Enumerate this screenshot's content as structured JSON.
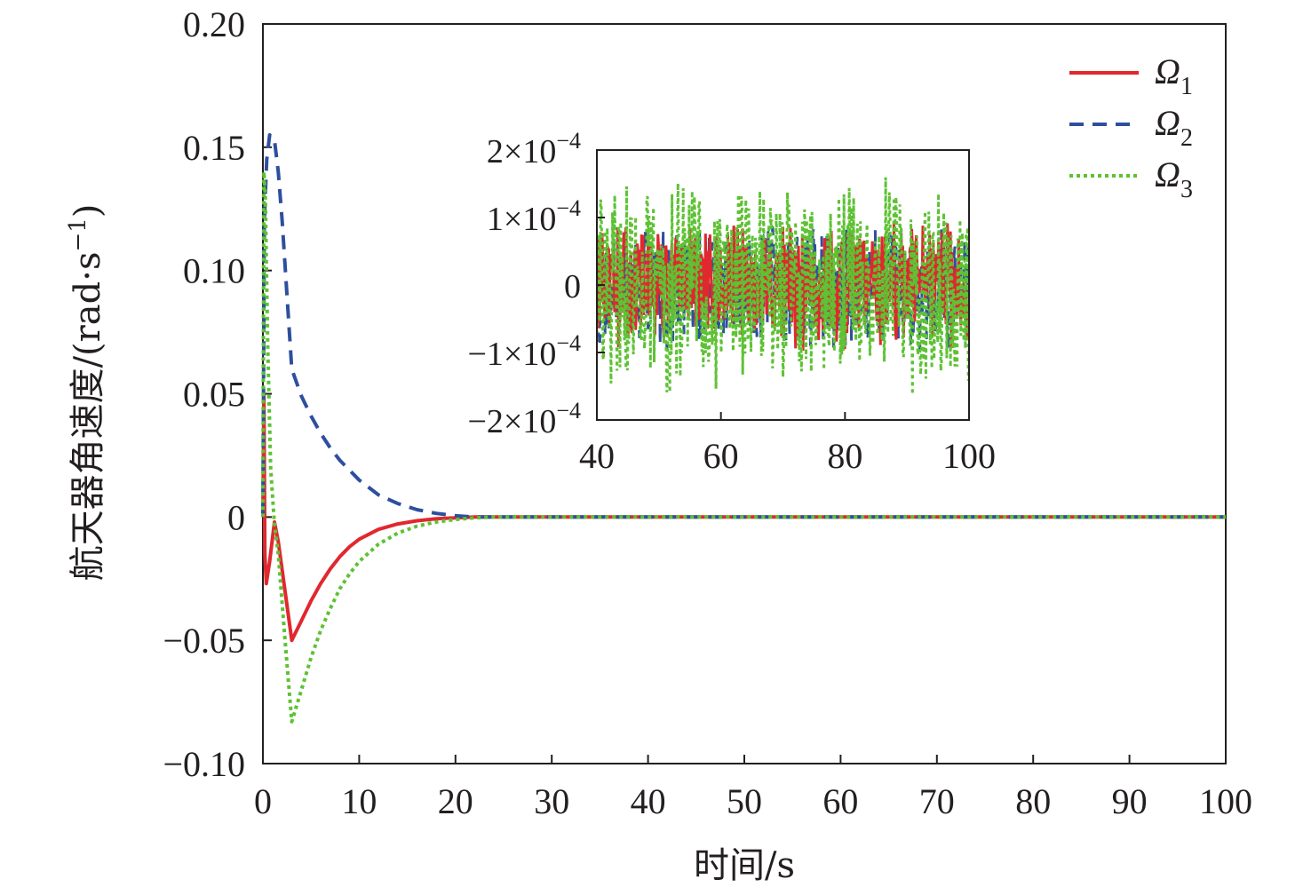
{
  "chart_data": [
    {
      "type": "line",
      "title": "",
      "xlabel": "时间/s",
      "ylabel": "航天器角速度/(rad·s",
      "ylabel_superscript": "−1",
      "ylabel_close": ")",
      "xlim": [
        0,
        100
      ],
      "ylim": [
        -0.1,
        0.2
      ],
      "x_ticks": [
        0,
        10,
        20,
        30,
        40,
        50,
        60,
        70,
        80,
        90,
        100
      ],
      "x_tick_labels": [
        "0",
        "10",
        "20",
        "30",
        "40",
        "50",
        "60",
        "70",
        "80",
        "90",
        "100"
      ],
      "y_ticks": [
        -0.1,
        -0.05,
        0,
        0.05,
        0.1,
        0.15,
        0.2
      ],
      "y_tick_labels": [
        "−0.10",
        "−0.05",
        "0",
        "0.05",
        "0.10",
        "0.15",
        "0.20"
      ],
      "grid": false,
      "legend_position": "top-right",
      "series": [
        {
          "name": "Ω",
          "subscript": "1",
          "color": "#e0282e",
          "dash": "solid",
          "points": [
            [
              0,
              0
            ],
            [
              0.1,
              0.05
            ],
            [
              0.2,
              -0.015
            ],
            [
              0.35,
              -0.027
            ],
            [
              0.7,
              -0.018
            ],
            [
              1.2,
              -0.002
            ],
            [
              1.6,
              -0.01
            ],
            [
              2.3,
              -0.03
            ],
            [
              3.0,
              -0.05
            ],
            [
              4,
              -0.042
            ],
            [
              5,
              -0.034
            ],
            [
              6,
              -0.027
            ],
            [
              7,
              -0.021
            ],
            [
              8,
              -0.016
            ],
            [
              9,
              -0.012
            ],
            [
              10,
              -0.009
            ],
            [
              12,
              -0.005
            ],
            [
              14,
              -0.0028
            ],
            [
              16,
              -0.0015
            ],
            [
              18,
              -0.0007
            ],
            [
              20,
              -0.0003
            ],
            [
              22,
              0
            ],
            [
              100,
              0
            ]
          ]
        },
        {
          "name": "Ω",
          "subscript": "2",
          "color": "#2e4f9e",
          "dash": "dashed",
          "points": [
            [
              0,
              0.0
            ],
            [
              0.15,
              0.12
            ],
            [
              0.4,
              0.145
            ],
            [
              0.7,
              0.155
            ],
            [
              1.2,
              0.153
            ],
            [
              1.6,
              0.14
            ],
            [
              2.0,
              0.12
            ],
            [
              2.5,
              0.09
            ],
            [
              3.0,
              0.06
            ],
            [
              4,
              0.049
            ],
            [
              5,
              0.041
            ],
            [
              6,
              0.034
            ],
            [
              7,
              0.028
            ],
            [
              8,
              0.023
            ],
            [
              9,
              0.019
            ],
            [
              10,
              0.015
            ],
            [
              12,
              0.009
            ],
            [
              14,
              0.0055
            ],
            [
              16,
              0.003
            ],
            [
              18,
              0.0015
            ],
            [
              20,
              0.0005
            ],
            [
              22,
              0
            ],
            [
              100,
              0
            ]
          ]
        },
        {
          "name": "Ω",
          "subscript": "3",
          "color": "#5ec234",
          "dash": "dotted",
          "points": [
            [
              0,
              0.0
            ],
            [
              0.1,
              0.14
            ],
            [
              0.25,
              0.13
            ],
            [
              0.5,
              0.07
            ],
            [
              0.8,
              0.02
            ],
            [
              1.2,
              -0.003
            ],
            [
              1.6,
              -0.015
            ],
            [
              2.2,
              -0.045
            ],
            [
              3.0,
              -0.083
            ],
            [
              4,
              -0.07
            ],
            [
              5,
              -0.057
            ],
            [
              6,
              -0.046
            ],
            [
              7,
              -0.037
            ],
            [
              8,
              -0.029
            ],
            [
              9,
              -0.023
            ],
            [
              10,
              -0.018
            ],
            [
              12,
              -0.011
            ],
            [
              14,
              -0.0065
            ],
            [
              16,
              -0.0037
            ],
            [
              18,
              -0.002
            ],
            [
              20,
              -0.001
            ],
            [
              22,
              -0.0003
            ],
            [
              24,
              0
            ],
            [
              100,
              0
            ]
          ]
        }
      ]
    },
    {
      "type": "line",
      "title": "",
      "xlabel": "",
      "ylabel": "",
      "xlim": [
        40,
        100
      ],
      "ylim": [
        -0.0002,
        0.0002
      ],
      "x_ticks": [
        40,
        60,
        80,
        100
      ],
      "x_tick_labels": [
        "40",
        "60",
        "80",
        "100"
      ],
      "y_ticks": [
        0.0002,
        0.0001,
        0,
        -0.0001,
        -0.0002
      ],
      "y_tick_labels": [
        {
          "mantissa": "2×10",
          "exponent": "−4"
        },
        {
          "mantissa": "1×10",
          "exponent": "−4"
        },
        {
          "mantissa": "0",
          "exponent": ""
        },
        {
          "mantissa": "−1×10",
          "exponent": "−4"
        },
        {
          "mantissa": "−2×10",
          "exponent": "−4"
        }
      ],
      "grid": false,
      "noise_series": [
        {
          "color": "#2e4f9e",
          "dash": "dashed",
          "amplitude": 0.0001,
          "seed": 7
        },
        {
          "color": "#e0282e",
          "dash": "solid",
          "amplitude": 0.0001,
          "seed": 13
        },
        {
          "color": "#5ec234",
          "dash": "dotted",
          "amplitude": 0.00017,
          "seed": 29
        }
      ]
    }
  ]
}
